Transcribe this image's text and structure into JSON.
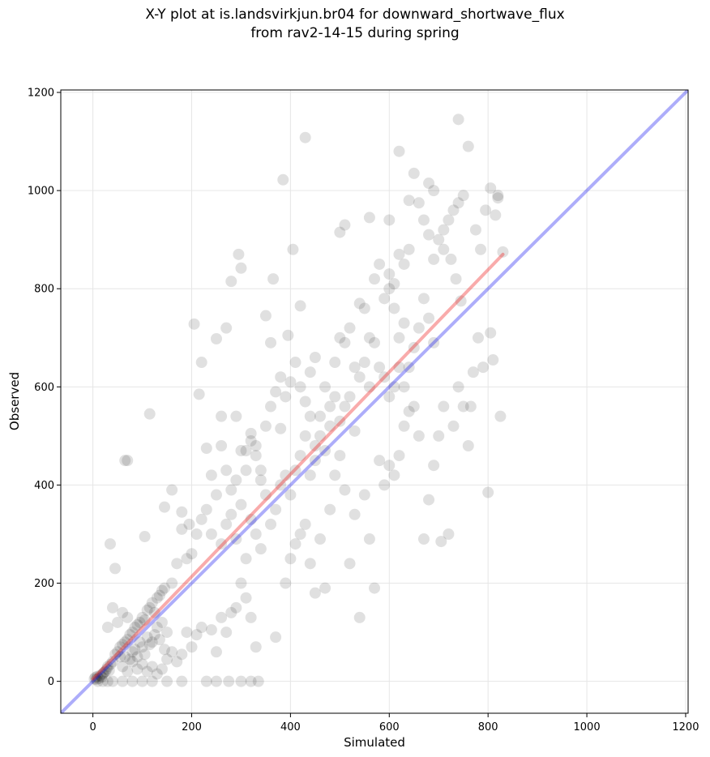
{
  "chart_data": {
    "type": "scatter",
    "title": [
      "X-Y plot at is.landsvirkjun.br04 for downward_shortwave_flux",
      "from rav2-14-15 during spring"
    ],
    "xlabel": "Simulated",
    "ylabel": "Observed",
    "xlim": [
      -65,
      1205
    ],
    "ylim": [
      -65,
      1205
    ],
    "xticks": [
      0,
      200,
      400,
      600,
      800,
      1000,
      1200
    ],
    "yticks": [
      0,
      200,
      400,
      600,
      800,
      1000,
      1200
    ],
    "grid": true,
    "identity_line": {
      "x": [
        -65,
        1205
      ],
      "y": [
        -65,
        1205
      ],
      "color": "#0000ee"
    },
    "fit_line": {
      "x": [
        0,
        830
      ],
      "y": [
        5,
        870
      ],
      "color": "#ee2222"
    },
    "point_color": "#000000",
    "series": [
      {
        "points": [
          [
            3,
            5
          ],
          [
            5,
            8
          ],
          [
            7,
            4
          ],
          [
            9,
            10
          ],
          [
            12,
            6
          ],
          [
            15,
            12
          ],
          [
            18,
            9
          ],
          [
            20,
            15
          ],
          [
            22,
            18
          ],
          [
            25,
            20
          ],
          [
            28,
            25
          ],
          [
            30,
            30
          ],
          [
            33,
            22
          ],
          [
            36,
            35
          ],
          [
            40,
            40
          ],
          [
            45,
            55
          ],
          [
            50,
            60
          ],
          [
            55,
            50
          ],
          [
            60,
            75
          ],
          [
            65,
            80
          ],
          [
            70,
            85
          ],
          [
            75,
            95
          ],
          [
            80,
            100
          ],
          [
            85,
            110
          ],
          [
            90,
            115
          ],
          [
            95,
            120
          ],
          [
            100,
            130
          ],
          [
            105,
            125
          ],
          [
            110,
            145
          ],
          [
            115,
            150
          ],
          [
            120,
            160
          ],
          [
            125,
            140
          ],
          [
            130,
            170
          ],
          [
            135,
            175
          ],
          [
            140,
            185
          ],
          [
            145,
            190
          ],
          [
            10,
            0
          ],
          [
            20,
            0
          ],
          [
            30,
            0
          ],
          [
            40,
            0
          ],
          [
            60,
            0
          ],
          [
            80,
            0
          ],
          [
            100,
            0
          ],
          [
            120,
            0
          ],
          [
            150,
            0
          ],
          [
            180,
            0
          ],
          [
            230,
            0
          ],
          [
            250,
            0
          ],
          [
            275,
            0
          ],
          [
            300,
            0
          ],
          [
            320,
            0
          ],
          [
            335,
            0
          ],
          [
            30,
            110
          ],
          [
            40,
            150
          ],
          [
            50,
            120
          ],
          [
            60,
            140
          ],
          [
            70,
            130
          ],
          [
            80,
            60
          ],
          [
            90,
            50
          ],
          [
            100,
            70
          ],
          [
            110,
            90
          ],
          [
            120,
            80
          ],
          [
            130,
            110
          ],
          [
            140,
            120
          ],
          [
            150,
            100
          ],
          [
            160,
            60
          ],
          [
            170,
            40
          ],
          [
            180,
            55
          ],
          [
            190,
            100
          ],
          [
            200,
            70
          ],
          [
            210,
            95
          ],
          [
            220,
            110
          ],
          [
            240,
            105
          ],
          [
            250,
            60
          ],
          [
            260,
            130
          ],
          [
            270,
            100
          ],
          [
            280,
            140
          ],
          [
            290,
            150
          ],
          [
            300,
            200
          ],
          [
            310,
            170
          ],
          [
            320,
            130
          ],
          [
            330,
            70
          ],
          [
            35,
            280
          ],
          [
            45,
            230
          ],
          [
            65,
            450
          ],
          [
            70,
            450
          ],
          [
            105,
            295
          ],
          [
            115,
            545
          ],
          [
            145,
            355
          ],
          [
            160,
            390
          ],
          [
            180,
            345
          ],
          [
            195,
            320
          ],
          [
            205,
            728
          ],
          [
            215,
            585
          ],
          [
            220,
            650
          ],
          [
            230,
            475
          ],
          [
            240,
            420
          ],
          [
            250,
            698
          ],
          [
            260,
            540
          ],
          [
            270,
            720
          ],
          [
            280,
            815
          ],
          [
            290,
            540
          ],
          [
            295,
            870
          ],
          [
            300,
            842
          ],
          [
            310,
            470
          ],
          [
            320,
            505
          ],
          [
            330,
            480
          ],
          [
            340,
            430
          ],
          [
            350,
            745
          ],
          [
            360,
            690
          ],
          [
            365,
            820
          ],
          [
            380,
            515
          ],
          [
            385,
            1022
          ],
          [
            395,
            705
          ],
          [
            405,
            880
          ],
          [
            420,
            765
          ],
          [
            430,
            1108
          ],
          [
            160,
            200
          ],
          [
            170,
            240
          ],
          [
            180,
            310
          ],
          [
            190,
            250
          ],
          [
            200,
            260
          ],
          [
            210,
            300
          ],
          [
            220,
            330
          ],
          [
            230,
            350
          ],
          [
            240,
            300
          ],
          [
            250,
            380
          ],
          [
            260,
            280
          ],
          [
            270,
            320
          ],
          [
            280,
            340
          ],
          [
            290,
            290
          ],
          [
            300,
            360
          ],
          [
            310,
            250
          ],
          [
            320,
            330
          ],
          [
            330,
            300
          ],
          [
            340,
            270
          ],
          [
            350,
            380
          ],
          [
            360,
            320
          ],
          [
            370,
            350
          ],
          [
            380,
            400
          ],
          [
            390,
            420
          ],
          [
            400,
            380
          ],
          [
            410,
            430
          ],
          [
            420,
            460
          ],
          [
            430,
            500
          ],
          [
            440,
            540
          ],
          [
            450,
            480
          ],
          [
            370,
            90
          ],
          [
            390,
            200
          ],
          [
            400,
            250
          ],
          [
            410,
            280
          ],
          [
            420,
            300
          ],
          [
            430,
            320
          ],
          [
            440,
            240
          ],
          [
            450,
            180
          ],
          [
            460,
            290
          ],
          [
            470,
            190
          ],
          [
            480,
            350
          ],
          [
            490,
            420
          ],
          [
            500,
            460
          ],
          [
            510,
            390
          ],
          [
            520,
            240
          ],
          [
            530,
            340
          ],
          [
            540,
            130
          ],
          [
            550,
            380
          ],
          [
            560,
            290
          ],
          [
            570,
            190
          ],
          [
            580,
            450
          ],
          [
            590,
            400
          ],
          [
            600,
            440
          ],
          [
            610,
            420
          ],
          [
            620,
            460
          ],
          [
            630,
            520
          ],
          [
            640,
            550
          ],
          [
            650,
            560
          ],
          [
            660,
            500
          ],
          [
            670,
            290
          ],
          [
            460,
            540
          ],
          [
            470,
            600
          ],
          [
            480,
            560
          ],
          [
            490,
            650
          ],
          [
            500,
            700
          ],
          [
            510,
            690
          ],
          [
            520,
            720
          ],
          [
            530,
            640
          ],
          [
            540,
            770
          ],
          [
            550,
            760
          ],
          [
            560,
            700
          ],
          [
            570,
            820
          ],
          [
            580,
            850
          ],
          [
            590,
            780
          ],
          [
            600,
            830
          ],
          [
            610,
            810
          ],
          [
            620,
            870
          ],
          [
            630,
            850
          ],
          [
            640,
            880
          ],
          [
            650,
            1035
          ],
          [
            660,
            975
          ],
          [
            670,
            940
          ],
          [
            680,
            910
          ],
          [
            690,
            860
          ],
          [
            700,
            900
          ],
          [
            710,
            880
          ],
          [
            720,
            940
          ],
          [
            730,
            960
          ],
          [
            740,
            1145
          ],
          [
            750,
            990
          ],
          [
            680,
            370
          ],
          [
            690,
            440
          ],
          [
            700,
            500
          ],
          [
            705,
            285
          ],
          [
            710,
            560
          ],
          [
            720,
            300
          ],
          [
            730,
            520
          ],
          [
            740,
            600
          ],
          [
            750,
            560
          ],
          [
            760,
            480
          ],
          [
            770,
            630
          ],
          [
            780,
            700
          ],
          [
            790,
            640
          ],
          [
            800,
            385
          ],
          [
            805,
            710
          ],
          [
            810,
            655
          ],
          [
            820,
            990
          ],
          [
            825,
            540
          ],
          [
            830,
            875
          ],
          [
            760,
            1090
          ],
          [
            765,
            560
          ],
          [
            775,
            920
          ],
          [
            785,
            880
          ],
          [
            795,
            960
          ],
          [
            805,
            1005
          ],
          [
            815,
            950
          ],
          [
            820,
            985
          ],
          [
            745,
            775
          ],
          [
            735,
            820
          ],
          [
            725,
            860
          ],
          [
            500,
            915
          ],
          [
            510,
            930
          ],
          [
            560,
            945
          ],
          [
            600,
            940
          ],
          [
            620,
            1080
          ],
          [
            640,
            980
          ],
          [
            680,
            1015
          ],
          [
            690,
            1000
          ],
          [
            710,
            920
          ],
          [
            740,
            975
          ],
          [
            600,
            800
          ],
          [
            610,
            760
          ],
          [
            620,
            700
          ],
          [
            630,
            730
          ],
          [
            640,
            640
          ],
          [
            650,
            680
          ],
          [
            660,
            720
          ],
          [
            670,
            780
          ],
          [
            680,
            740
          ],
          [
            690,
            690
          ],
          [
            260,
            480
          ],
          [
            270,
            430
          ],
          [
            280,
            390
          ],
          [
            290,
            410
          ],
          [
            300,
            470
          ],
          [
            310,
            430
          ],
          [
            320,
            490
          ],
          [
            330,
            460
          ],
          [
            340,
            410
          ],
          [
            350,
            520
          ],
          [
            360,
            560
          ],
          [
            370,
            590
          ],
          [
            380,
            620
          ],
          [
            390,
            580
          ],
          [
            400,
            610
          ],
          [
            410,
            650
          ],
          [
            420,
            600
          ],
          [
            430,
            570
          ],
          [
            440,
            630
          ],
          [
            450,
            660
          ],
          [
            540,
            620
          ],
          [
            550,
            650
          ],
          [
            560,
            600
          ],
          [
            570,
            690
          ],
          [
            580,
            640
          ],
          [
            590,
            620
          ],
          [
            600,
            580
          ],
          [
            610,
            600
          ],
          [
            620,
            640
          ],
          [
            630,
            600
          ],
          [
            520,
            580
          ],
          [
            530,
            510
          ],
          [
            510,
            560
          ],
          [
            500,
            530
          ],
          [
            490,
            580
          ],
          [
            480,
            520
          ],
          [
            470,
            470
          ],
          [
            460,
            500
          ],
          [
            450,
            450
          ],
          [
            440,
            420
          ],
          [
            60,
            30
          ],
          [
            70,
            20
          ],
          [
            80,
            40
          ],
          [
            90,
            25
          ],
          [
            100,
            35
          ],
          [
            110,
            20
          ],
          [
            120,
            30
          ],
          [
            130,
            15
          ],
          [
            140,
            25
          ],
          [
            150,
            45
          ],
          [
            55,
            70
          ],
          [
            65,
            50
          ],
          [
            75,
            45
          ],
          [
            85,
            65
          ],
          [
            95,
            80
          ],
          [
            105,
            55
          ],
          [
            115,
            75
          ],
          [
            125,
            95
          ],
          [
            135,
            85
          ],
          [
            145,
            65
          ]
        ]
      }
    ]
  }
}
